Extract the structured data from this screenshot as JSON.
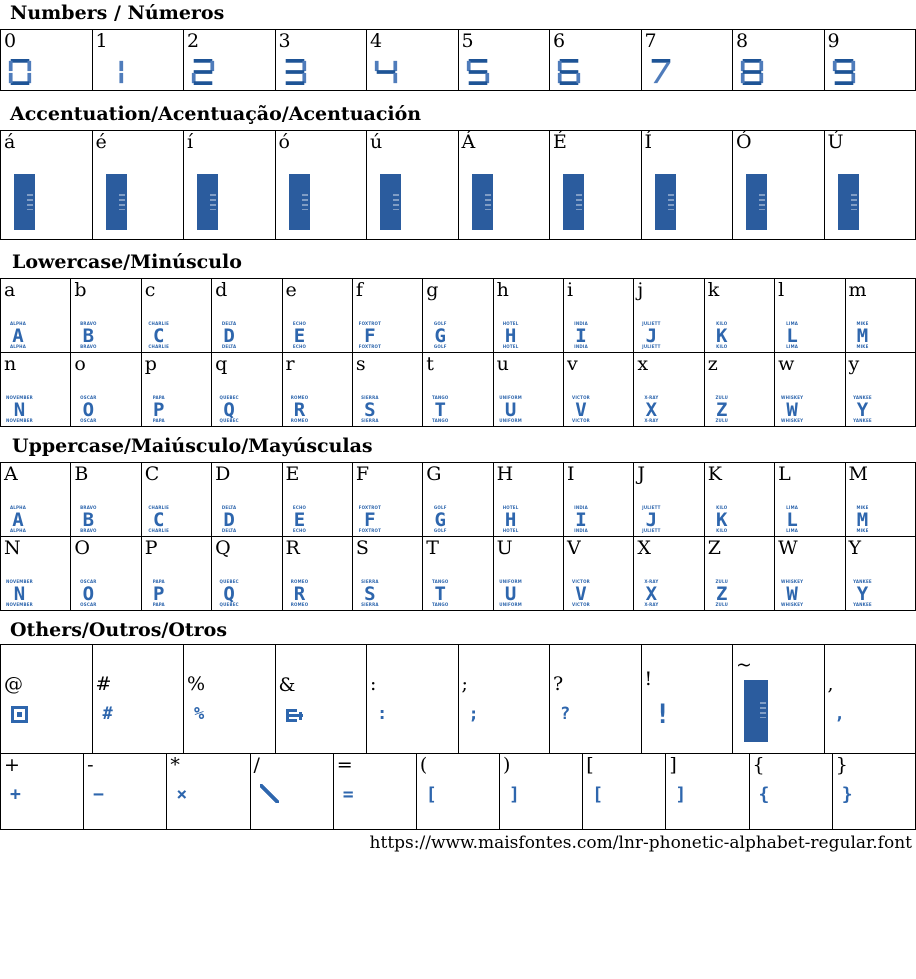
{
  "colors": {
    "glyph_blue": "#2e66ad",
    "glyph_blue_dark": "#1e5496",
    "glyph_blue_light": "#4f7cbb",
    "solid_box_blue": "#2b5c9e",
    "border_black": "#000000"
  },
  "sections": {
    "numbers": {
      "title": "Numbers / Números",
      "cells": [
        "0",
        "1",
        "2",
        "3",
        "4",
        "5",
        "6",
        "7",
        "8",
        "9"
      ]
    },
    "accentuation": {
      "title": "Accentuation/Acentuação/Acentuación",
      "cells": [
        "á",
        "é",
        "í",
        "ó",
        "ú",
        "Á",
        "É",
        "Í",
        "Ó",
        "Ú"
      ]
    },
    "lowercase": {
      "title": "Lowercase/Minúsculo",
      "rows": [
        [
          {
            "char": "a",
            "word": "ALPHA"
          },
          {
            "char": "b",
            "word": "BRAVO"
          },
          {
            "char": "c",
            "word": "CHARLIE"
          },
          {
            "char": "d",
            "word": "DELTA"
          },
          {
            "char": "e",
            "word": "ECHO"
          },
          {
            "char": "f",
            "word": "FOXTROT"
          },
          {
            "char": "g",
            "word": "GOLF"
          },
          {
            "char": "h",
            "word": "HOTEL"
          },
          {
            "char": "i",
            "word": "INDIA"
          },
          {
            "char": "j",
            "word": "JULIETT"
          },
          {
            "char": "k",
            "word": "KILO"
          },
          {
            "char": "l",
            "word": "LIMA"
          },
          {
            "char": "m",
            "word": "MIKE"
          }
        ],
        [
          {
            "char": "n",
            "word": "NOVEMBER"
          },
          {
            "char": "o",
            "word": "OSCAR"
          },
          {
            "char": "p",
            "word": "PAPA"
          },
          {
            "char": "q",
            "word": "QUEBEC"
          },
          {
            "char": "r",
            "word": "ROMEO"
          },
          {
            "char": "s",
            "word": "SIERRA"
          },
          {
            "char": "t",
            "word": "TANGO"
          },
          {
            "char": "u",
            "word": "UNIFORM"
          },
          {
            "char": "v",
            "word": "VICTOR"
          },
          {
            "char": "x",
            "word": "X-RAY"
          },
          {
            "char": "z",
            "word": "ZULU"
          },
          {
            "char": "w",
            "word": "WHISKEY"
          },
          {
            "char": "y",
            "word": "YANKEE"
          }
        ]
      ]
    },
    "uppercase": {
      "title": "Uppercase/Maiúsculo/Mayúsculas",
      "rows": [
        [
          {
            "char": "A",
            "word": "ALPHA"
          },
          {
            "char": "B",
            "word": "BRAVO"
          },
          {
            "char": "C",
            "word": "CHARLIE"
          },
          {
            "char": "D",
            "word": "DELTA"
          },
          {
            "char": "E",
            "word": "ECHO"
          },
          {
            "char": "F",
            "word": "FOXTROT"
          },
          {
            "char": "G",
            "word": "GOLF"
          },
          {
            "char": "H",
            "word": "HOTEL"
          },
          {
            "char": "I",
            "word": "INDIA"
          },
          {
            "char": "J",
            "word": "JULIETT"
          },
          {
            "char": "K",
            "word": "KILO"
          },
          {
            "char": "L",
            "word": "LIMA"
          },
          {
            "char": "M",
            "word": "MIKE"
          }
        ],
        [
          {
            "char": "N",
            "word": "NOVEMBER"
          },
          {
            "char": "O",
            "word": "OSCAR"
          },
          {
            "char": "P",
            "word": "PAPA"
          },
          {
            "char": "Q",
            "word": "QUEBEC"
          },
          {
            "char": "R",
            "word": "ROMEO"
          },
          {
            "char": "S",
            "word": "SIERRA"
          },
          {
            "char": "T",
            "word": "TANGO"
          },
          {
            "char": "U",
            "word": "UNIFORM"
          },
          {
            "char": "V",
            "word": "VICTOR"
          },
          {
            "char": "X",
            "word": "X-RAY"
          },
          {
            "char": "Z",
            "word": "ZULU"
          },
          {
            "char": "W",
            "word": "WHISKEY"
          },
          {
            "char": "Y",
            "word": "YANKEE"
          }
        ]
      ]
    },
    "others": {
      "title": "Others/Outros/Otros",
      "row1": [
        {
          "char": "@",
          "glyph": "at-square"
        },
        {
          "char": "#",
          "glyph": "#"
        },
        {
          "char": "%",
          "glyph": "%"
        },
        {
          "char": "&",
          "glyph": "amp-e"
        },
        {
          "char": ":",
          "glyph": ":"
        },
        {
          "char": ";",
          "glyph": ";"
        },
        {
          "char": "?",
          "glyph": "?"
        },
        {
          "char": "!",
          "glyph": "!",
          "big": true
        },
        {
          "char": "~",
          "glyph": "box"
        },
        {
          "char": ",",
          "glyph": ","
        }
      ],
      "row2": [
        {
          "char": "+",
          "glyph": "+"
        },
        {
          "char": "-",
          "glyph": "−"
        },
        {
          "char": "*",
          "glyph": "×"
        },
        {
          "char": "/",
          "glyph": "diag"
        },
        {
          "char": "=",
          "glyph": "="
        },
        {
          "char": "(",
          "glyph": "["
        },
        {
          "char": ")",
          "glyph": "]"
        },
        {
          "char": "[",
          "glyph": "["
        },
        {
          "char": "]",
          "glyph": "]"
        },
        {
          "char": "{",
          "glyph": "{"
        },
        {
          "char": "}",
          "glyph": "}"
        }
      ]
    }
  },
  "footer": {
    "url": "https://www.maisfontes.com/lnr-phonetic-alphabet-regular.font"
  }
}
